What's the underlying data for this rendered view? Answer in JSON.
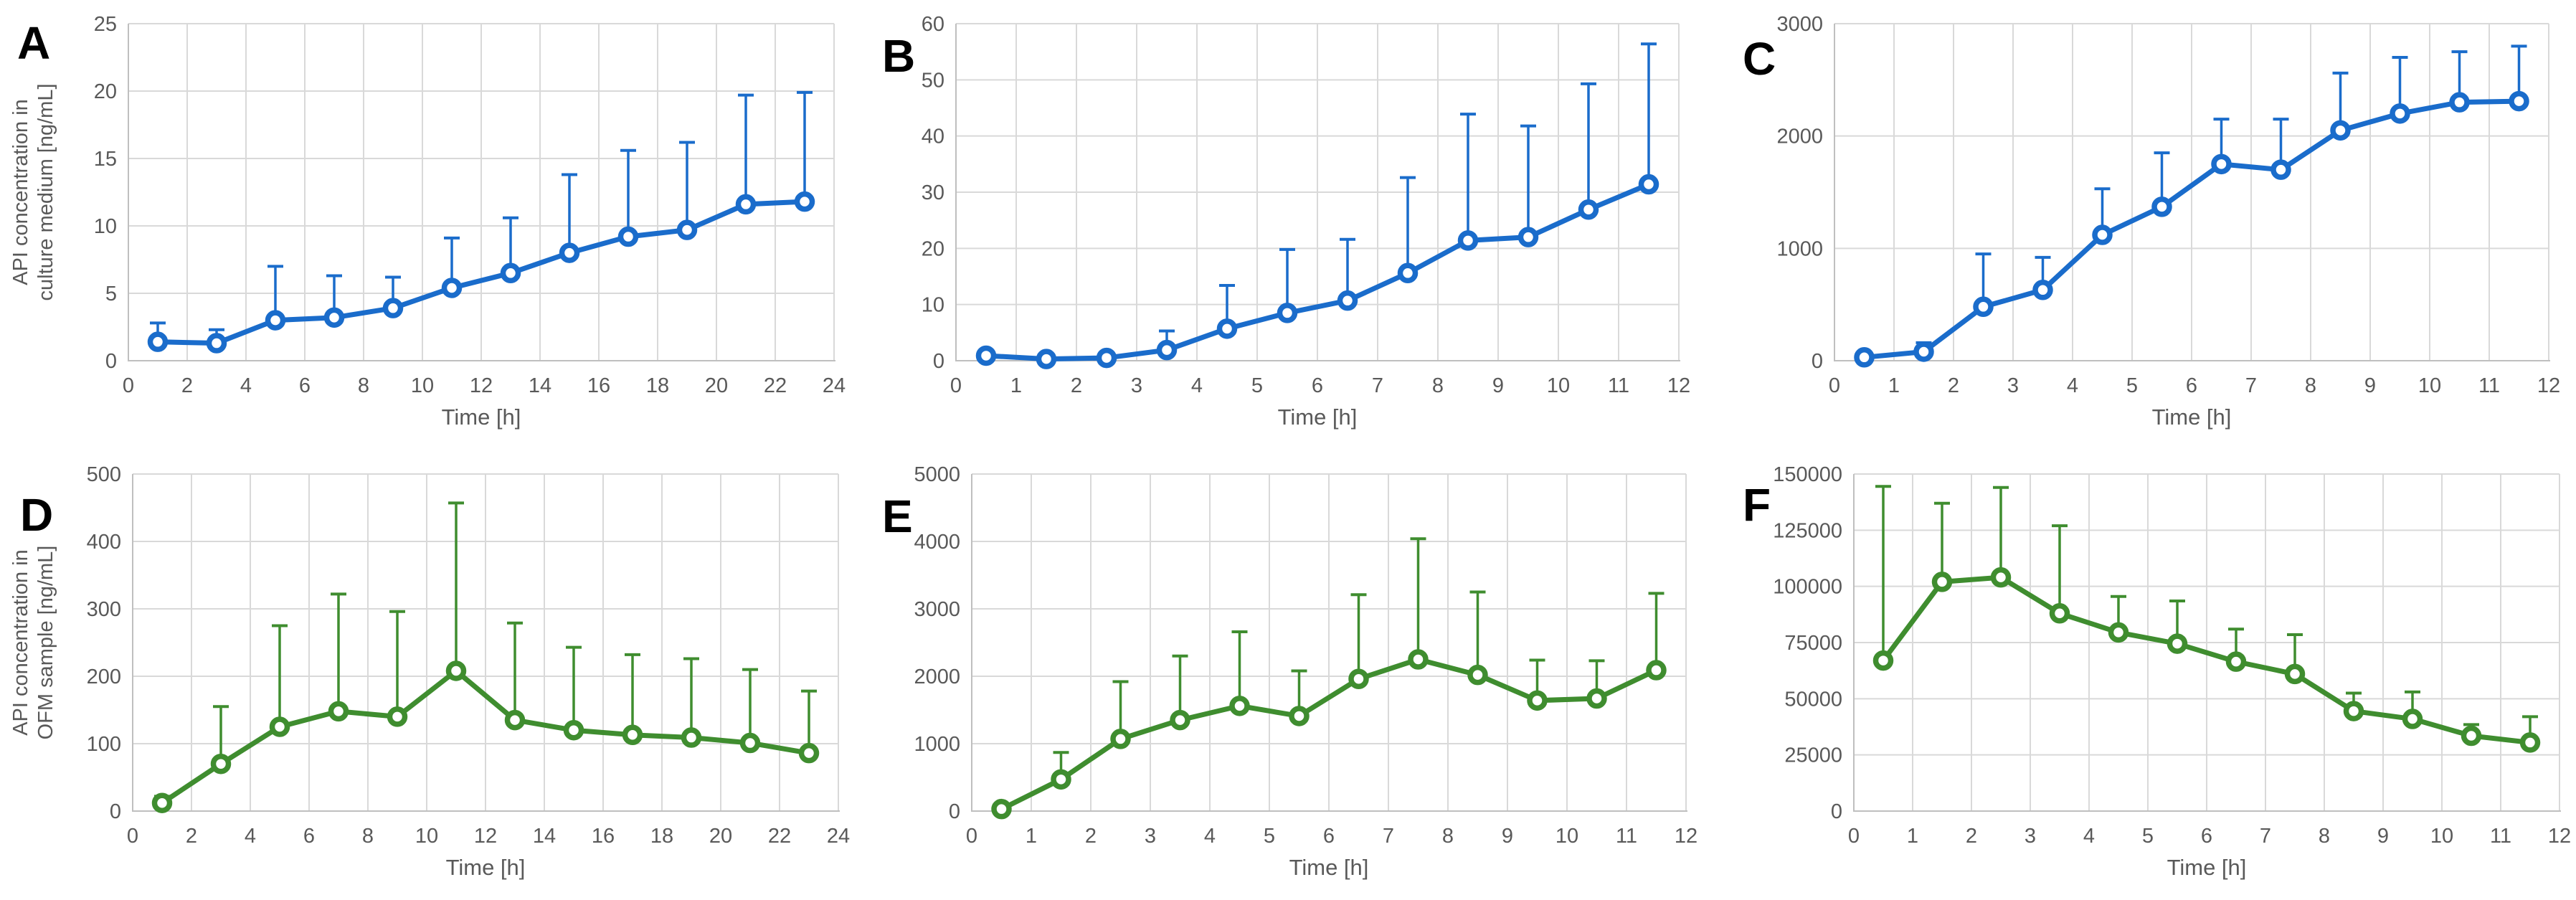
{
  "figure_label": "Six-panel API concentration time-course figure",
  "chart_data": [
    {
      "type": "line",
      "panel_letter": "A",
      "xlabel": "Time [h]",
      "ylabel": "API concentration in culture medium [ng/mL]",
      "ylabel_lines": [
        "API concentration in",
        "culture medium [ng/mL]"
      ],
      "line_color": "#1A6CCB",
      "marker": "open-circle",
      "error_bars": "upper-only",
      "grid": true,
      "legend": "none",
      "xlim": [
        0,
        24
      ],
      "ylim": [
        0,
        25
      ],
      "x_ticks": [
        0,
        2,
        4,
        6,
        8,
        10,
        12,
        14,
        16,
        18,
        20,
        22,
        24
      ],
      "y_ticks": [
        0,
        5,
        10,
        15,
        20,
        25
      ],
      "x": [
        1,
        3,
        5,
        7,
        9,
        11,
        13,
        15,
        17,
        19,
        21,
        23
      ],
      "y": [
        1.4,
        1.3,
        3.0,
        3.2,
        3.9,
        5.4,
        6.5,
        8.0,
        9.2,
        9.7,
        11.6,
        11.8
      ],
      "y_err_top": [
        2.8,
        2.3,
        7.0,
        6.3,
        6.2,
        9.1,
        10.6,
        13.8,
        15.6,
        16.2,
        19.7,
        19.9
      ]
    },
    {
      "type": "line",
      "panel_letter": "B",
      "xlabel": "Time [h]",
      "ylabel": "",
      "ylabel_lines": [],
      "line_color": "#1A6CCB",
      "marker": "open-circle",
      "error_bars": "upper-only",
      "grid": true,
      "legend": "none",
      "xlim": [
        0,
        12
      ],
      "ylim": [
        0,
        60
      ],
      "x_ticks": [
        0,
        1,
        2,
        3,
        4,
        5,
        6,
        7,
        8,
        9,
        10,
        11,
        12
      ],
      "y_ticks": [
        0,
        10,
        20,
        30,
        40,
        50,
        60
      ],
      "x": [
        0.5,
        1.5,
        2.5,
        3.5,
        4.5,
        5.5,
        6.5,
        7.5,
        8.5,
        9.5,
        10.5,
        11.5
      ],
      "y": [
        0.9,
        0.3,
        0.5,
        1.9,
        5.7,
        8.5,
        10.7,
        15.6,
        21.4,
        22.0,
        26.9,
        31.4
      ],
      "y_err_top": [
        1.5,
        0.8,
        1.2,
        5.3,
        13.4,
        19.8,
        21.6,
        32.6,
        43.9,
        41.8,
        49.3,
        56.4
      ]
    },
    {
      "type": "line",
      "panel_letter": "C",
      "xlabel": "Time [h]",
      "ylabel": "",
      "ylabel_lines": [],
      "line_color": "#1A6CCB",
      "marker": "open-circle",
      "error_bars": "upper-only",
      "grid": true,
      "legend": "none",
      "xlim": [
        0,
        12
      ],
      "ylim": [
        0,
        3000
      ],
      "x_ticks": [
        0,
        1,
        2,
        3,
        4,
        5,
        6,
        7,
        8,
        9,
        10,
        11,
        12
      ],
      "y_ticks": [
        0,
        1000,
        2000,
        3000
      ],
      "x": [
        0.5,
        1.5,
        2.5,
        3.5,
        4.5,
        5.5,
        6.5,
        7.5,
        8.5,
        9.5,
        10.5,
        11.5
      ],
      "y": [
        30,
        80,
        480,
        630,
        1120,
        1370,
        1750,
        1700,
        2050,
        2200,
        2300,
        2310
      ],
      "y_err_top": [
        60,
        160,
        950,
        920,
        1530,
        1850,
        2150,
        2150,
        2560,
        2700,
        2750,
        2800
      ]
    },
    {
      "type": "line",
      "panel_letter": "D",
      "xlabel": "Time [h]",
      "ylabel": "API concentration in OFM sample [ng/mL]",
      "ylabel_lines": [
        "API concentration in",
        "OFM sample [ng/mL]"
      ],
      "line_color": "#3F8D2F",
      "marker": "open-circle",
      "error_bars": "upper-only",
      "grid": true,
      "legend": "none",
      "xlim": [
        0,
        24
      ],
      "ylim": [
        0,
        500
      ],
      "x_ticks": [
        0,
        2,
        4,
        6,
        8,
        10,
        12,
        14,
        16,
        18,
        20,
        22,
        24
      ],
      "y_ticks": [
        0,
        100,
        200,
        300,
        400,
        500
      ],
      "x": [
        1,
        3,
        5,
        7,
        9,
        11,
        13,
        15,
        17,
        19,
        21,
        23
      ],
      "y": [
        12,
        70,
        125,
        148,
        140,
        208,
        135,
        120,
        113,
        109,
        101,
        86
      ],
      "y_err_top": [
        22,
        155,
        275,
        322,
        296,
        457,
        279,
        243,
        232,
        226,
        210,
        178
      ]
    },
    {
      "type": "line",
      "panel_letter": "E",
      "xlabel": "Time [h]",
      "ylabel": "",
      "ylabel_lines": [],
      "line_color": "#3F8D2F",
      "marker": "open-circle",
      "error_bars": "upper-only",
      "grid": true,
      "legend": "none",
      "xlim": [
        0,
        12
      ],
      "ylim": [
        0,
        5000
      ],
      "x_ticks": [
        0,
        1,
        2,
        3,
        4,
        5,
        6,
        7,
        8,
        9,
        10,
        11,
        12
      ],
      "y_ticks": [
        0,
        1000,
        2000,
        3000,
        4000,
        5000
      ],
      "x": [
        0.5,
        1.5,
        2.5,
        3.5,
        4.5,
        5.5,
        6.5,
        7.5,
        8.5,
        9.5,
        10.5,
        11.5
      ],
      "y": [
        30,
        470,
        1070,
        1350,
        1560,
        1410,
        1960,
        2250,
        2020,
        1640,
        1670,
        2090
      ],
      "y_err_top": [
        80,
        870,
        1920,
        2300,
        2660,
        2080,
        3210,
        4040,
        3250,
        2240,
        2230,
        3230
      ]
    },
    {
      "type": "line",
      "panel_letter": "F",
      "xlabel": "Time [h]",
      "ylabel": "",
      "ylabel_lines": [],
      "line_color": "#3F8D2F",
      "marker": "open-circle",
      "error_bars": "upper-only",
      "grid": true,
      "legend": "none",
      "xlim": [
        0,
        12
      ],
      "ylim": [
        0,
        150000
      ],
      "x_ticks": [
        0,
        1,
        2,
        3,
        4,
        5,
        6,
        7,
        8,
        9,
        10,
        11,
        12
      ],
      "y_ticks": [
        0,
        25000,
        50000,
        75000,
        100000,
        125000,
        150000
      ],
      "x": [
        0.5,
        1.5,
        2.5,
        3.5,
        4.5,
        5.5,
        6.5,
        7.5,
        8.5,
        9.5,
        10.5,
        11.5
      ],
      "y": [
        67000,
        102000,
        104000,
        88000,
        79500,
        74500,
        66500,
        61000,
        44500,
        41000,
        33500,
        30500
      ],
      "y_err_top": [
        144500,
        137000,
        144000,
        127000,
        95500,
        93500,
        81000,
        78500,
        52500,
        53000,
        38500,
        42000
      ]
    }
  ]
}
